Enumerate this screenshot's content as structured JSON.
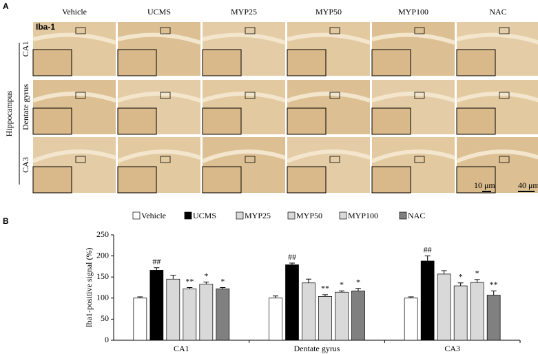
{
  "panel_a": {
    "label": "A",
    "stain": "Iba-1",
    "region": "Hippocampus",
    "columns": [
      "Vehicle",
      "UCMS",
      "MYP25",
      "MYP50",
      "MYP100",
      "NAC"
    ],
    "rows": [
      "CA1",
      "Dentate gyrus",
      "CA3"
    ],
    "scale_bars": [
      "10 μm",
      "40 μm"
    ]
  },
  "chart_data": {
    "type": "bar",
    "panel_label": "B",
    "y_label": "Iba1-positive signal (%)",
    "categories": [
      "CA1",
      "Dentate gyrus",
      "CA3"
    ],
    "series": [
      {
        "name": "Vehicle",
        "color": "#ffffff",
        "values": [
          100,
          100,
          100
        ],
        "errors": [
          3,
          5,
          3
        ],
        "annotations": [
          null,
          null,
          null
        ]
      },
      {
        "name": "UCMS",
        "color": "#000000",
        "values": [
          166,
          179,
          188
        ],
        "errors": [
          6,
          4,
          12
        ],
        "annotations": [
          "##",
          "##",
          "##"
        ]
      },
      {
        "name": "MYP25",
        "color": "#d9d9d9",
        "values": [
          145,
          136,
          157
        ],
        "errors": [
          9,
          9,
          8
        ],
        "annotations": [
          null,
          null,
          null
        ]
      },
      {
        "name": "MYP50",
        "color": "#d9d9d9",
        "values": [
          122,
          104,
          129
        ],
        "errors": [
          3,
          4,
          7
        ],
        "annotations": [
          "**",
          "**",
          "*"
        ]
      },
      {
        "name": "MYP100",
        "color": "#d9d9d9",
        "values": [
          133,
          114,
          137
        ],
        "errors": [
          5,
          3,
          7
        ],
        "annotations": [
          "*",
          "*",
          "*"
        ]
      },
      {
        "name": "NAC",
        "color": "#808080",
        "values": [
          122,
          117,
          107
        ],
        "errors": [
          3,
          6,
          10
        ],
        "annotations": [
          "*",
          "*",
          "**"
        ]
      }
    ],
    "ylim": [
      0,
      250
    ],
    "yticks": [
      0,
      50,
      100,
      150,
      200,
      250
    ],
    "grid": false
  }
}
